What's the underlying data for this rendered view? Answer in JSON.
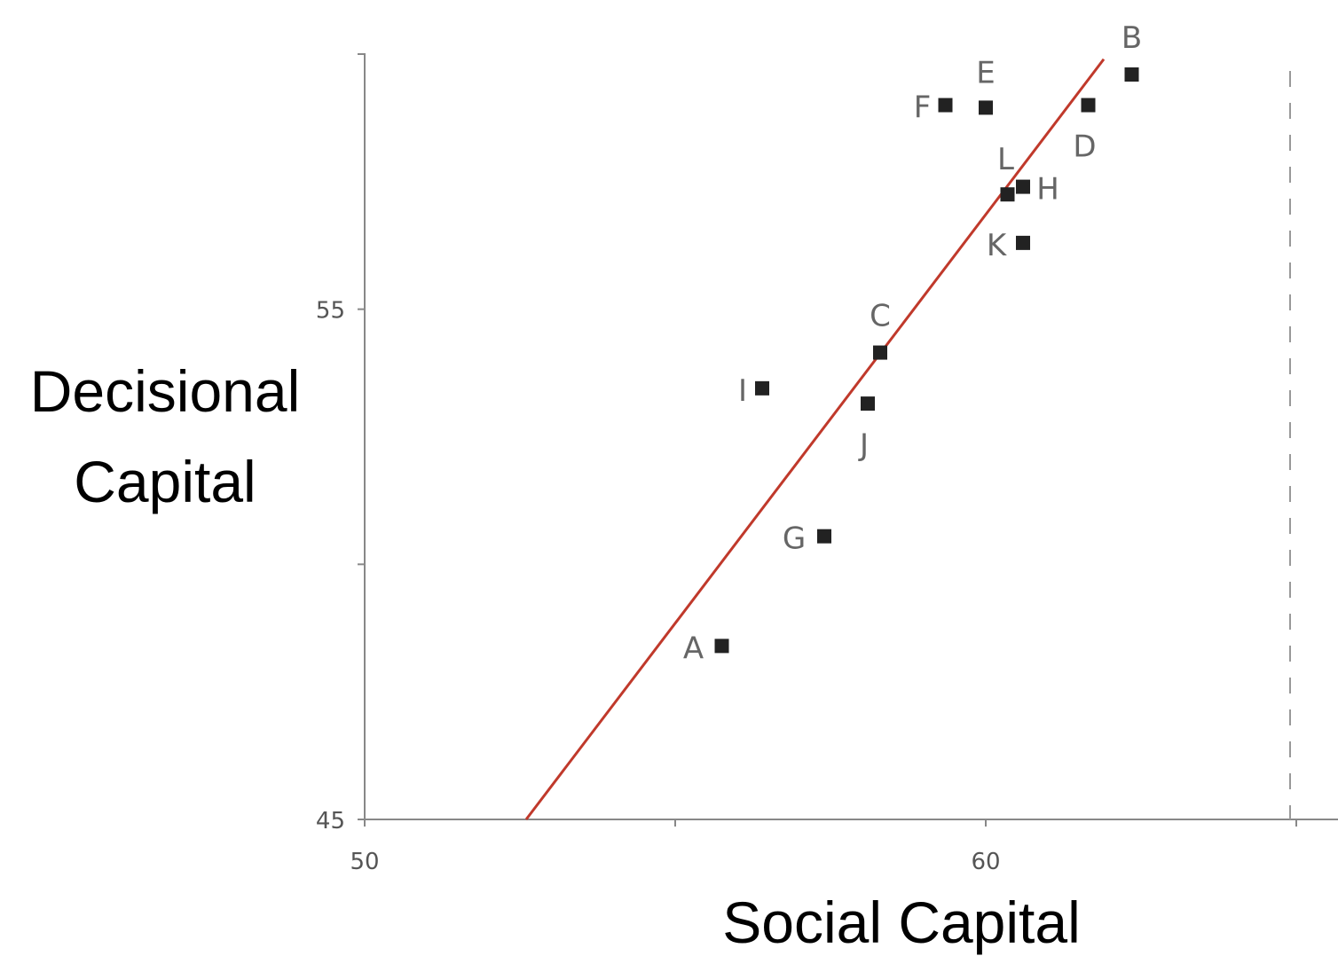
{
  "chart_data": {
    "type": "scatter",
    "xlabel": "Social Capital",
    "ylabel_lines": [
      "Decisional",
      "Capital"
    ],
    "xlim": [
      50,
      65
    ],
    "ylim": [
      45,
      60
    ],
    "x_ticks": [
      50,
      60
    ],
    "y_ticks": [
      45,
      55
    ],
    "x_minor_ticks": [
      55,
      65
    ],
    "y_minor_ticks": [
      50,
      60
    ],
    "reference_line_x": 65,
    "trendline": {
      "x": [
        52.6,
        61.9
      ],
      "y": [
        45,
        59.9
      ],
      "color": "#c0392b"
    },
    "point_color": "#222222",
    "points": [
      {
        "label": "A",
        "x": 55.75,
        "y": 48.4
      },
      {
        "label": "B",
        "x": 62.35,
        "y": 59.6
      },
      {
        "label": "C",
        "x": 58.3,
        "y": 54.15
      },
      {
        "label": "D",
        "x": 61.65,
        "y": 59.0
      },
      {
        "label": "E",
        "x": 60.0,
        "y": 58.95
      },
      {
        "label": "F",
        "x": 59.35,
        "y": 59.0
      },
      {
        "label": "G",
        "x": 57.4,
        "y": 50.55
      },
      {
        "label": "H",
        "x": 60.6,
        "y": 57.4
      },
      {
        "label": "I",
        "x": 56.4,
        "y": 53.45
      },
      {
        "label": "J",
        "x": 58.1,
        "y": 53.15
      },
      {
        "label": "K",
        "x": 60.6,
        "y": 56.3
      },
      {
        "label": "L",
        "x": 60.35,
        "y": 57.25
      }
    ]
  }
}
